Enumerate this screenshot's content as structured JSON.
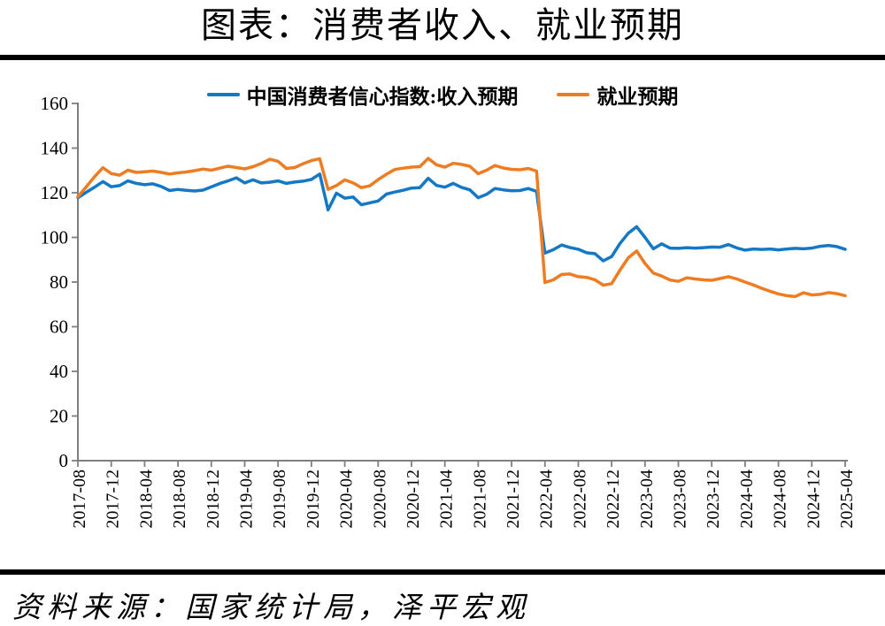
{
  "header": {
    "title": "图表：消费者收入、就业预期"
  },
  "footer": {
    "source": "资料来源：国家统计局，泽平宏观"
  },
  "colors": {
    "axis": "#7F7F7F",
    "text": "#000000",
    "rule": "#000000",
    "background": "#FFFFFF"
  },
  "chart_data": {
    "type": "line",
    "title": "图表：消费者收入、就业预期",
    "x_unit": "month",
    "x_range": [
      "2017-08",
      "2025-04"
    ],
    "x_points_monthly": 93,
    "x_tick_every_n_months": 4,
    "x_tick_labels": [
      "2017-08",
      "2017-12",
      "2018-04",
      "2018-08",
      "2018-12",
      "2019-04",
      "2019-08",
      "2019-12",
      "2020-04",
      "2020-08",
      "2020-12",
      "2021-04",
      "2021-08",
      "2021-12",
      "2022-04",
      "2022-08",
      "2022-12",
      "2023-04",
      "2023-08",
      "2023-12",
      "2024-04",
      "2024-08",
      "2024-12",
      "2025-04"
    ],
    "ylim": [
      0,
      160
    ],
    "y_ticks": [
      0,
      20,
      40,
      60,
      80,
      100,
      120,
      140,
      160
    ],
    "grid": false,
    "legend_position": "top",
    "series": [
      {
        "name": "中国消费者信心指数:收入预期",
        "color": "#1478C4",
        "values": [
          117.8,
          120.2,
          122.5,
          125.0,
          122.7,
          123.2,
          125.3,
          124.2,
          123.6,
          124.0,
          122.8,
          121.0,
          121.5,
          121.1,
          120.8,
          121.2,
          122.6,
          124.1,
          125.3,
          126.7,
          124.4,
          125.8,
          124.4,
          124.7,
          125.3,
          124.2,
          124.8,
          125.2,
          126.0,
          128.4,
          112.3,
          119.8,
          117.6,
          118.1,
          114.6,
          115.5,
          116.3,
          119.4,
          120.3,
          121.1,
          122.1,
          122.3,
          126.5,
          123.3,
          122.5,
          124.2,
          122.4,
          121.3,
          117.8,
          119.3,
          121.9,
          121.3,
          120.9,
          121.0,
          121.9,
          120.6,
          93.0,
          94.5,
          96.6,
          95.5,
          94.7,
          93.1,
          92.7,
          89.5,
          91.4,
          97.3,
          101.9,
          104.8,
          100.0,
          94.9,
          97.1,
          95.2,
          95.1,
          95.4,
          95.2,
          95.4,
          95.7,
          95.6,
          96.8,
          95.3,
          94.3,
          94.8,
          94.6,
          94.8,
          94.4,
          94.8,
          95.1,
          94.9,
          95.2,
          96.0,
          96.4,
          95.9,
          94.7
        ]
      },
      {
        "name": "就业预期",
        "color": "#EE7C23",
        "values": [
          118.2,
          122.6,
          127.2,
          131.2,
          128.6,
          127.9,
          130.1,
          129.1,
          129.4,
          129.7,
          129.1,
          128.4,
          128.9,
          129.3,
          129.9,
          130.6,
          130.1,
          131.0,
          131.9,
          131.3,
          130.7,
          131.7,
          133.1,
          135.0,
          134.1,
          130.9,
          131.3,
          133.0,
          134.4,
          135.2,
          121.5,
          123.2,
          125.8,
          124.4,
          122.3,
          123.1,
          125.9,
          128.3,
          130.4,
          131.0,
          131.5,
          131.7,
          135.4,
          132.5,
          131.5,
          133.2,
          132.7,
          131.9,
          128.5,
          130.1,
          132.2,
          131.1,
          130.5,
          130.3,
          130.9,
          129.7,
          79.8,
          81.0,
          83.4,
          83.6,
          82.4,
          82.1,
          81.0,
          78.6,
          79.3,
          85.4,
          90.9,
          93.9,
          88.3,
          84.0,
          82.7,
          80.9,
          80.3,
          81.9,
          81.4,
          81.0,
          80.8,
          81.6,
          82.4,
          81.4,
          80.0,
          78.7,
          77.2,
          75.9,
          74.7,
          73.9,
          73.5,
          75.2,
          74.2,
          74.5,
          75.3,
          74.8,
          73.9
        ]
      }
    ]
  }
}
